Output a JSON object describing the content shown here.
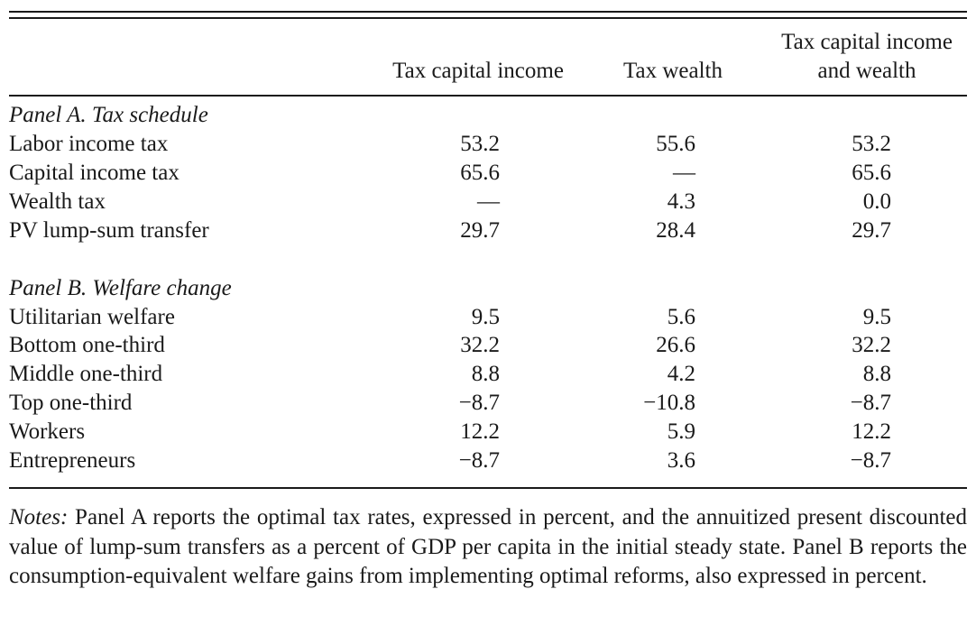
{
  "header": {
    "col1": "Tax capital income",
    "col2": "Tax wealth",
    "col3_line1": "Tax capital income",
    "col3_line2": "and wealth"
  },
  "panel_a": {
    "title": "Panel A.  Tax schedule",
    "rows": [
      {
        "label": "Labor income tax",
        "v1": "53.2",
        "v2": "55.6",
        "v3": "53.2"
      },
      {
        "label": "Capital income tax",
        "v1": "65.6",
        "v2": "—",
        "v3": "65.6"
      },
      {
        "label": "Wealth tax",
        "v1": "—",
        "v2": "4.3",
        "v3": "0.0"
      },
      {
        "label": "PV lump-sum transfer",
        "v1": "29.7",
        "v2": "28.4",
        "v3": "29.7"
      }
    ]
  },
  "panel_b": {
    "title": "Panel B.  Welfare change",
    "rows": [
      {
        "label": "Utilitarian welfare",
        "v1": "9.5",
        "v2": "5.6",
        "v3": "9.5"
      },
      {
        "label": "Bottom one-third",
        "v1": "32.2",
        "v2": "26.6",
        "v3": "32.2"
      },
      {
        "label": "Middle one-third",
        "v1": "8.8",
        "v2": "4.2",
        "v3": "8.8"
      },
      {
        "label": "Top one-third",
        "v1": "−8.7",
        "v2": "−10.8",
        "v3": "−8.7"
      },
      {
        "label": "Workers",
        "v1": "12.2",
        "v2": "5.9",
        "v3": "12.2"
      },
      {
        "label": "Entrepreneurs",
        "v1": "−8.7",
        "v2": "3.6",
        "v3": "−8.7"
      }
    ]
  },
  "notes": {
    "label": "Notes:",
    "text": " Panel A reports the optimal tax rates, expressed in percent, and the annuitized present discounted value of lump-sum transfers as a percent of GDP per capita in the initial steady state. Panel B reports the consumption-equivalent welfare gains from implementing optimal reforms, also expressed in percent."
  }
}
